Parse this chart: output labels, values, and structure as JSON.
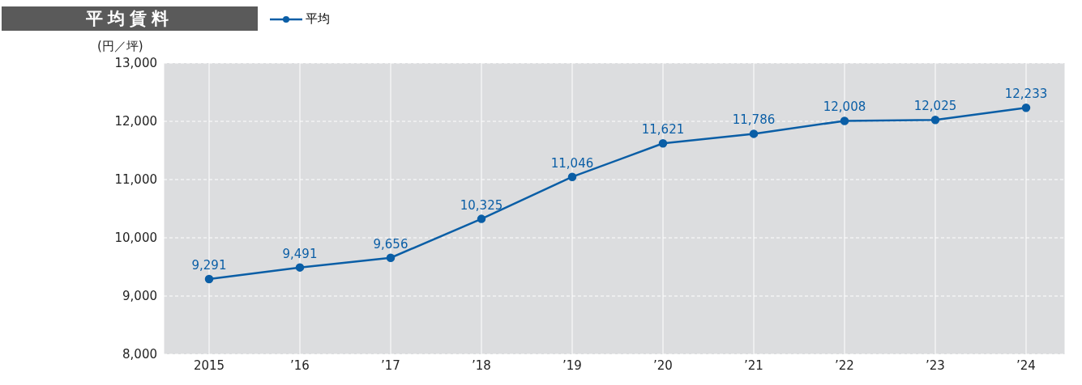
{
  "chart_data": {
    "type": "line",
    "title": "平均賃料",
    "ylabel": "(円／坪)",
    "categories": [
      "2015",
      "’16",
      "’17",
      "’18",
      "’19",
      "’20",
      "’21",
      "’22",
      "’23",
      "’24"
    ],
    "series": [
      {
        "name": "平均",
        "color": "#0a5ea6",
        "values": [
          9291,
          9491,
          9656,
          10325,
          11046,
          11621,
          11786,
          12008,
          12025,
          12233
        ],
        "value_labels": [
          "9,291",
          "9,491",
          "9,656",
          "10,325",
          "11,046",
          "11,621",
          "11,786",
          "12,008",
          "12,025",
          "12,233"
        ]
      }
    ],
    "ylim": [
      8000,
      13000
    ],
    "yticks": [
      {
        "value": 8000,
        "label": "8,000"
      },
      {
        "value": 9000,
        "label": "9,000"
      },
      {
        "value": 10000,
        "label": "10,000"
      },
      {
        "value": 11000,
        "label": "11,000"
      },
      {
        "value": 12000,
        "label": "12,000"
      },
      {
        "value": 13000,
        "label": "13,000"
      }
    ],
    "grid": true,
    "legend": "top left",
    "marker": "circle",
    "line_style": "solid"
  }
}
